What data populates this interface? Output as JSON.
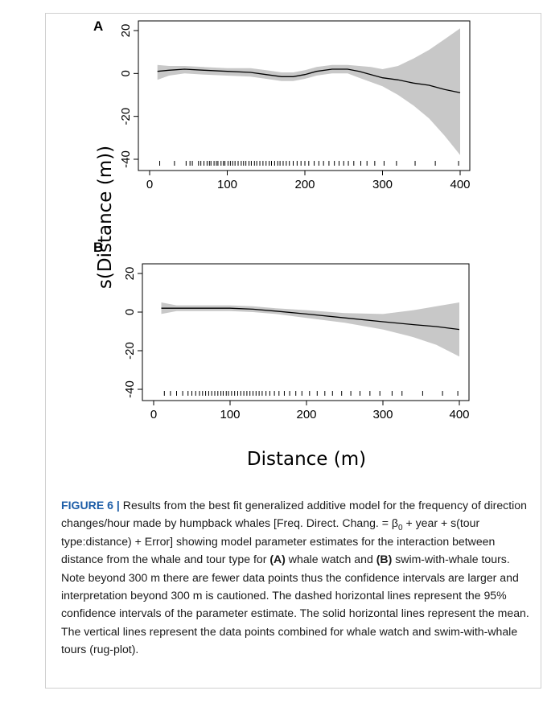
{
  "figure": {
    "caption": {
      "label": "FIGURE 6 |",
      "part1": " Results from the best fit generalized additive model for the frequency of direction changes/hour made by humpback whales [Freq. Direct. Chang. = β",
      "subscript": "0",
      "part2": " + year + s(tour type:distance) + Error] showing model parameter estimates for the interaction between distance from the whale and tour type for ",
      "ref_a": "(A)",
      "part3": " whale watch and ",
      "ref_b": "(B)",
      "part4": " swim-with-whale tours. Note beyond 300 m there are fewer data points thus the confidence intervals are larger and interpretation beyond 300 m is cautioned. The dashed horizontal lines represent the 95% confidence intervals of the parameter estimate. The solid horizontal lines represent the mean. The vertical lines represent the data points combined for whale watch and swim-with-whale tours (rug-plot)."
    }
  },
  "colors": {
    "band": "#c8c8c8",
    "line": "#000000",
    "frame": "#000000"
  },
  "shared_ylabel": "s(Distance (m))",
  "chart_data": [
    {
      "type": "area",
      "panel": "A",
      "xlabel": "",
      "xlim": [
        0,
        400
      ],
      "ylim": [
        -40,
        20
      ],
      "xticks": [
        0,
        100,
        200,
        300,
        400
      ],
      "yticks": [
        20,
        0,
        -20,
        -40
      ],
      "x": [
        10,
        25,
        45,
        70,
        100,
        130,
        150,
        170,
        185,
        200,
        215,
        235,
        255,
        270,
        285,
        300,
        320,
        340,
        360,
        380,
        400
      ],
      "mean": [
        1,
        1.5,
        2,
        1.5,
        1,
        0.5,
        -0.5,
        -1.5,
        -1.5,
        -0.5,
        1,
        2,
        2,
        1,
        -0.5,
        -2,
        -3,
        -4.5,
        -5.5,
        -7.5,
        -9
      ],
      "lower": [
        -3,
        -1,
        0,
        -0.5,
        -1,
        -1.5,
        -2.5,
        -3.5,
        -3.5,
        -2.5,
        -1,
        0,
        0,
        -2,
        -4,
        -6,
        -10,
        -15,
        -21,
        -29,
        -38
      ],
      "upper": [
        4,
        3.5,
        3.5,
        3,
        2.5,
        2.5,
        1.5,
        0.5,
        0.5,
        1.5,
        3,
        4,
        4,
        3.5,
        3,
        2,
        3.5,
        7,
        11,
        16,
        21
      ],
      "rug": [
        13,
        32,
        47,
        52,
        55,
        63,
        66,
        70,
        74,
        77,
        79,
        83,
        86,
        88,
        92,
        95,
        97,
        101,
        104,
        107,
        110,
        114,
        118,
        121,
        124,
        128,
        131,
        135,
        138,
        142,
        146,
        150,
        154,
        157,
        161,
        165,
        168,
        172,
        176,
        180,
        185,
        190,
        195,
        200,
        205,
        212,
        218,
        224,
        231,
        238,
        244,
        250,
        256,
        263,
        272,
        280,
        290,
        302,
        318,
        342,
        368,
        398
      ]
    },
    {
      "type": "area",
      "panel": "B",
      "xlabel": "Distance (m)",
      "xlim": [
        0,
        400
      ],
      "ylim": [
        -40,
        20
      ],
      "xticks": [
        0,
        100,
        200,
        300,
        400
      ],
      "yticks": [
        20,
        0,
        -20,
        -40
      ],
      "x": [
        10,
        30,
        60,
        100,
        130,
        160,
        200,
        250,
        300,
        340,
        370,
        400
      ],
      "mean": [
        2,
        2,
        2,
        2,
        1.5,
        0.5,
        -1,
        -3,
        -5,
        -6.5,
        -7.5,
        -9
      ],
      "lower": [
        -1,
        0.5,
        0.5,
        0.5,
        0,
        -1,
        -3,
        -5.5,
        -9,
        -13,
        -17,
        -23
      ],
      "upper": [
        5,
        3.5,
        3.5,
        3.5,
        3,
        2,
        1,
        -0.5,
        -1,
        1,
        3,
        5
      ],
      "rug": [
        14,
        22,
        30,
        38,
        45,
        50,
        55,
        60,
        64,
        68,
        72,
        76,
        80,
        84,
        88,
        91,
        95,
        98,
        102,
        106,
        110,
        114,
        118,
        122,
        126,
        130,
        134,
        138,
        142,
        147,
        152,
        158,
        164,
        171,
        178,
        186,
        194,
        204,
        214,
        224,
        234,
        246,
        258,
        270,
        283,
        296,
        312,
        325,
        352,
        378,
        398
      ]
    }
  ]
}
